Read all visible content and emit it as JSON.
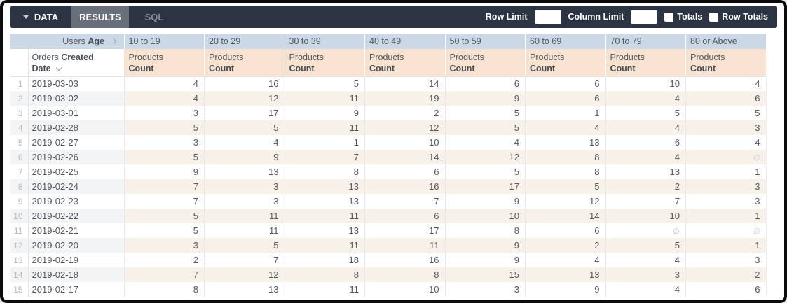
{
  "toolbar": {
    "tabs": [
      {
        "label": "DATA"
      },
      {
        "label": "RESULTS"
      },
      {
        "label": "SQL"
      }
    ],
    "active_tab": "RESULTS",
    "row_limit": {
      "label": "Row Limit",
      "value": ""
    },
    "column_limit": {
      "label": "Column Limit",
      "value": ""
    },
    "totals": {
      "label": "Totals",
      "checked": false
    },
    "row_totals": {
      "label": "Row Totals",
      "checked": false
    }
  },
  "table": {
    "pivot_dimension": {
      "view": "Users",
      "field": "Age"
    },
    "pivot_values": [
      "10 to 19",
      "20 to 29",
      "30 to 39",
      "40 to 49",
      "50 to 59",
      "60 to 69",
      "70 to 79",
      "80 or Above"
    ],
    "row_dimension": {
      "view": "Orders",
      "field_line1": "Created",
      "field_line2": "Date"
    },
    "measure": {
      "view": "Products",
      "field": "Count"
    },
    "null_symbol": "∅",
    "rows": [
      {
        "num": 1,
        "date": "2019-03-03",
        "values": [
          4,
          16,
          5,
          14,
          6,
          6,
          10,
          4
        ]
      },
      {
        "num": 2,
        "date": "2019-03-02",
        "values": [
          4,
          12,
          11,
          19,
          9,
          6,
          4,
          6
        ]
      },
      {
        "num": 3,
        "date": "2019-03-01",
        "values": [
          3,
          17,
          9,
          2,
          5,
          1,
          5,
          5
        ]
      },
      {
        "num": 4,
        "date": "2019-02-28",
        "values": [
          5,
          5,
          11,
          12,
          5,
          4,
          4,
          3
        ]
      },
      {
        "num": 5,
        "date": "2019-02-27",
        "values": [
          3,
          4,
          1,
          10,
          4,
          13,
          6,
          4
        ]
      },
      {
        "num": 6,
        "date": "2019-02-26",
        "values": [
          5,
          9,
          7,
          14,
          12,
          8,
          4,
          null
        ]
      },
      {
        "num": 7,
        "date": "2019-02-25",
        "values": [
          9,
          13,
          8,
          6,
          5,
          8,
          13,
          1
        ]
      },
      {
        "num": 8,
        "date": "2019-02-24",
        "values": [
          7,
          3,
          13,
          16,
          17,
          5,
          2,
          3
        ]
      },
      {
        "num": 9,
        "date": "2019-02-23",
        "values": [
          7,
          3,
          13,
          7,
          9,
          12,
          7,
          3
        ]
      },
      {
        "num": 10,
        "date": "2019-02-22",
        "values": [
          5,
          11,
          11,
          6,
          10,
          14,
          10,
          1
        ]
      },
      {
        "num": 11,
        "date": "2019-02-21",
        "values": [
          5,
          11,
          13,
          17,
          8,
          6,
          null,
          null
        ]
      },
      {
        "num": 12,
        "date": "2019-02-20",
        "values": [
          3,
          5,
          11,
          11,
          9,
          2,
          5,
          1
        ]
      },
      {
        "num": 13,
        "date": "2019-02-19",
        "values": [
          2,
          7,
          18,
          16,
          9,
          4,
          4,
          3
        ]
      },
      {
        "num": 14,
        "date": "2019-02-18",
        "values": [
          7,
          12,
          8,
          8,
          15,
          13,
          3,
          2
        ]
      },
      {
        "num": 15,
        "date": "2019-02-17",
        "values": [
          8,
          13,
          11,
          10,
          3,
          9,
          4,
          6
        ]
      }
    ]
  },
  "colors": {
    "toolbar_bg": "#2c3342",
    "active_tab_bg": "#686f7a",
    "pivot_header_bg": "#cbd9e6",
    "measure_header_bg": "#f7e3d0",
    "alt_row_dim_bg": "#f3f4f6",
    "alt_row_measure_bg": "#f8f1ea"
  }
}
